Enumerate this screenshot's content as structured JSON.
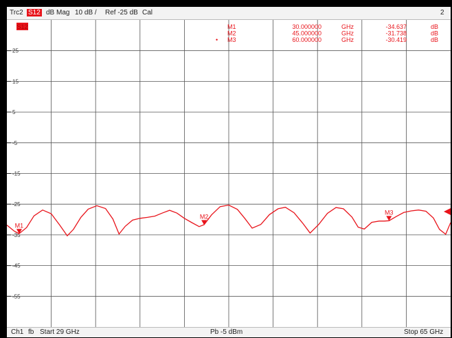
{
  "header": {
    "trace": "Trc2",
    "param": "S12",
    "format": "dB Mag",
    "scale": "10 dB /",
    "ref": "Ref -25 dB",
    "cal": "Cal",
    "channel_num": "2"
  },
  "footer": {
    "channel": "Ch1",
    "fb": "fb",
    "start": "Start  29 GHz",
    "power": "Pb  -5 dBm",
    "stop": "Stop  65 GHz"
  },
  "trace_tag": "S12",
  "markers": [
    {
      "name": "M1",
      "freq": "30.000000",
      "unit": "GHz",
      "value": "-34.637",
      "vunit": "dB",
      "active": false
    },
    {
      "name": "M2",
      "freq": "45.000000",
      "unit": "GHz",
      "value": "-31.738",
      "vunit": "dB",
      "active": false
    },
    {
      "name": "M3",
      "freq": "60.000000",
      "unit": "GHz",
      "value": "-30.419",
      "vunit": "dB",
      "active": true
    }
  ],
  "colors": {
    "trace": "#e8141b",
    "grid": "#555555",
    "background": "#ffffff"
  },
  "chart_data": {
    "type": "line",
    "title": "",
    "xlabel": "",
    "ylabel": "",
    "xlim": [
      29,
      65
    ],
    "ylim": [
      -65,
      35
    ],
    "y_tick_labels": [
      "25",
      "15",
      "5",
      "-5",
      "-15",
      "-25",
      "-35",
      "-45",
      "-55"
    ],
    "y_tick_values": [
      25,
      15,
      5,
      -5,
      -15,
      -25,
      -35,
      -45,
      -55
    ],
    "reference_level": -25,
    "series": [
      {
        "name": "S12",
        "x": [
          29.0,
          29.6,
          30.0,
          30.6,
          31.2,
          31.9,
          32.6,
          33.3,
          33.9,
          34.4,
          35.0,
          35.6,
          36.3,
          37.0,
          37.6,
          38.1,
          38.6,
          39.2,
          39.8,
          40.4,
          41.0,
          41.6,
          42.2,
          42.8,
          43.4,
          44.0,
          44.6,
          45.0,
          45.6,
          46.3,
          47.0,
          47.7,
          48.3,
          48.9,
          49.6,
          50.3,
          51.0,
          51.6,
          52.3,
          53.0,
          53.6,
          54.3,
          55.0,
          55.7,
          56.3,
          57.0,
          57.5,
          58.0,
          58.6,
          59.2,
          59.6,
          60.0,
          60.6,
          61.2,
          61.8,
          62.4,
          63.0,
          63.6,
          64.1,
          64.6,
          65.0
        ],
        "y": [
          -31.8,
          -33.8,
          -34.6,
          -32.6,
          -28.8,
          -26.9,
          -28.1,
          -31.9,
          -35.3,
          -33.2,
          -29.3,
          -26.6,
          -25.5,
          -26.4,
          -29.8,
          -34.7,
          -32.2,
          -30.2,
          -29.6,
          -29.3,
          -28.9,
          -27.9,
          -27.0,
          -27.9,
          -29.6,
          -31.0,
          -32.3,
          -31.7,
          -28.5,
          -25.8,
          -25.3,
          -26.7,
          -29.6,
          -32.8,
          -31.6,
          -28.4,
          -26.5,
          -26.0,
          -27.8,
          -31.2,
          -34.4,
          -31.6,
          -28.0,
          -26.1,
          -26.5,
          -29.2,
          -32.5,
          -33.1,
          -30.9,
          -30.5,
          -30.5,
          -30.4,
          -29.0,
          -27.7,
          -27.2,
          -26.9,
          -27.3,
          -29.5,
          -33.2,
          -34.8,
          -31.0
        ]
      }
    ]
  }
}
